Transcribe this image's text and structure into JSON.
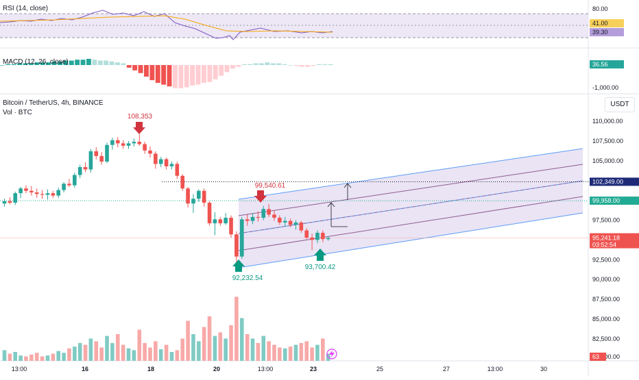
{
  "panes": {
    "rsi": {
      "label": "RSI (14, close)",
      "axis_labels": [
        "80.00",
        "41.00",
        "39.30"
      ]
    },
    "macd": {
      "label": "MACD (12, 26, close)",
      "axis_labels": [
        "36.56",
        "-1,000.00"
      ]
    },
    "price": {
      "title": "Bitcoin / TetherUS, 4h, BINANCE",
      "volume_label": "Vol · BTC",
      "currency_button": "USDT",
      "y_axis_labels": [
        "110,000.00",
        "107,500.00",
        "105,000.00",
        "102,349.00",
        "99,958.00",
        "97,500.00",
        "95,241.18",
        "03:52:54",
        "92,500.00",
        "90,000.00",
        "87,500.00",
        "85,000.00",
        "82,500.00",
        "80,000.00",
        "63"
      ]
    }
  },
  "x_axis_labels": [
    "13:00",
    "16",
    "18",
    "20",
    "13:00",
    "23",
    "25",
    "27",
    "13:00",
    "30"
  ],
  "annotations": {
    "high": "108,353",
    "resistance": "99,540.61",
    "low_1": "92,232.54",
    "low_2": "93,700.42"
  },
  "colors": {
    "up": "#26a69a",
    "down": "#ef5350",
    "rsi_line": "#7e57c2",
    "rsi_ma": "#f7a600",
    "channel_fill": "#b39ddb",
    "channel_edge": "#5b9cf6",
    "annotation_red": "#d1343f",
    "annotation_green": "#089981",
    "level_dark": "#131722",
    "level_green": "#22ab94"
  },
  "chart_data": {
    "type": "candlestick",
    "title": "Bitcoin / TetherUS, 4h, BINANCE",
    "ylim": [
      80000,
      112000
    ],
    "candles": [
      {
        "o": 99600,
        "h": 100200,
        "l": 99200,
        "c": 99900
      },
      {
        "o": 99900,
        "h": 100400,
        "l": 99500,
        "c": 99700
      },
      {
        "o": 99700,
        "h": 101100,
        "l": 99400,
        "c": 100900
      },
      {
        "o": 100900,
        "h": 101700,
        "l": 100300,
        "c": 101500
      },
      {
        "o": 101500,
        "h": 101900,
        "l": 100900,
        "c": 101200
      },
      {
        "o": 101200,
        "h": 101800,
        "l": 100600,
        "c": 101000
      },
      {
        "o": 101000,
        "h": 101500,
        "l": 100300,
        "c": 100800
      },
      {
        "o": 100800,
        "h": 101300,
        "l": 100200,
        "c": 100700
      },
      {
        "o": 100700,
        "h": 101400,
        "l": 100100,
        "c": 100900
      },
      {
        "o": 100900,
        "h": 101200,
        "l": 100300,
        "c": 100600
      },
      {
        "o": 100600,
        "h": 101600,
        "l": 100300,
        "c": 101300
      },
      {
        "o": 101300,
        "h": 102300,
        "l": 101000,
        "c": 102100
      },
      {
        "o": 102100,
        "h": 102700,
        "l": 101700,
        "c": 101900
      },
      {
        "o": 101900,
        "h": 103500,
        "l": 101600,
        "c": 103200
      },
      {
        "o": 103200,
        "h": 104500,
        "l": 102800,
        "c": 104200
      },
      {
        "o": 104200,
        "h": 104800,
        "l": 103600,
        "c": 103900
      },
      {
        "o": 103900,
        "h": 106500,
        "l": 103500,
        "c": 106200
      },
      {
        "o": 106200,
        "h": 106700,
        "l": 105200,
        "c": 105600
      },
      {
        "o": 105600,
        "h": 106100,
        "l": 104500,
        "c": 104900
      },
      {
        "o": 104900,
        "h": 107300,
        "l": 104700,
        "c": 107000
      },
      {
        "o": 107000,
        "h": 107900,
        "l": 106400,
        "c": 107600
      },
      {
        "o": 107600,
        "h": 108000,
        "l": 106700,
        "c": 107200
      },
      {
        "o": 107200,
        "h": 107600,
        "l": 106500,
        "c": 106900
      },
      {
        "o": 106900,
        "h": 107500,
        "l": 106500,
        "c": 107200
      },
      {
        "o": 107200,
        "h": 107800,
        "l": 106800,
        "c": 107400
      },
      {
        "o": 107400,
        "h": 108353,
        "l": 106900,
        "c": 107100
      },
      {
        "o": 107100,
        "h": 107400,
        "l": 105900,
        "c": 106300
      },
      {
        "o": 106300,
        "h": 106800,
        "l": 105400,
        "c": 105900
      },
      {
        "o": 105900,
        "h": 106200,
        "l": 104000,
        "c": 104600
      },
      {
        "o": 104600,
        "h": 105500,
        "l": 104200,
        "c": 105200
      },
      {
        "o": 105200,
        "h": 105400,
        "l": 103900,
        "c": 104300
      },
      {
        "o": 104300,
        "h": 104900,
        "l": 103900,
        "c": 104600
      },
      {
        "o": 104600,
        "h": 104900,
        "l": 102700,
        "c": 103100
      },
      {
        "o": 103100,
        "h": 103300,
        "l": 101200,
        "c": 101500
      },
      {
        "o": 101500,
        "h": 101700,
        "l": 99100,
        "c": 99600
      },
      {
        "o": 99600,
        "h": 100800,
        "l": 98400,
        "c": 100200
      },
      {
        "o": 100200,
        "h": 101400,
        "l": 99800,
        "c": 101200
      },
      {
        "o": 101200,
        "h": 101500,
        "l": 99200,
        "c": 99700
      },
      {
        "o": 99700,
        "h": 99900,
        "l": 96800,
        "c": 97100
      },
      {
        "o": 97100,
        "h": 98500,
        "l": 95600,
        "c": 97600
      },
      {
        "o": 97600,
        "h": 97900,
        "l": 96800,
        "c": 97100
      },
      {
        "o": 97100,
        "h": 98400,
        "l": 96900,
        "c": 97800
      },
      {
        "o": 97800,
        "h": 98100,
        "l": 95300,
        "c": 95700
      },
      {
        "o": 95700,
        "h": 96100,
        "l": 92232,
        "c": 92900
      },
      {
        "o": 92900,
        "h": 97900,
        "l": 92600,
        "c": 97600
      },
      {
        "o": 97600,
        "h": 98200,
        "l": 96800,
        "c": 97400
      },
      {
        "o": 97400,
        "h": 98400,
        "l": 97000,
        "c": 97900
      },
      {
        "o": 97900,
        "h": 98600,
        "l": 97300,
        "c": 97800
      },
      {
        "o": 97800,
        "h": 99300,
        "l": 97500,
        "c": 98900
      },
      {
        "o": 98900,
        "h": 99540,
        "l": 97900,
        "c": 98200
      },
      {
        "o": 98200,
        "h": 98700,
        "l": 97400,
        "c": 97800
      },
      {
        "o": 97800,
        "h": 98100,
        "l": 96900,
        "c": 97200
      },
      {
        "o": 97200,
        "h": 97900,
        "l": 96700,
        "c": 97400
      },
      {
        "o": 97400,
        "h": 97700,
        "l": 96600,
        "c": 96900
      },
      {
        "o": 96900,
        "h": 97500,
        "l": 96300,
        "c": 97200
      },
      {
        "o": 97200,
        "h": 97400,
        "l": 95900,
        "c": 96200
      },
      {
        "o": 96200,
        "h": 96500,
        "l": 95100,
        "c": 95300
      },
      {
        "o": 95300,
        "h": 95800,
        "l": 93700,
        "c": 95000
      },
      {
        "o": 95000,
        "h": 96200,
        "l": 94600,
        "c": 95900
      },
      {
        "o": 95900,
        "h": 96200,
        "l": 94700,
        "c": 95100
      },
      {
        "o": 95100,
        "h": 95400,
        "l": 94900,
        "c": 95241
      }
    ],
    "volume": [
      12,
      8,
      10,
      6,
      5,
      7,
      9,
      5,
      6,
      8,
      11,
      9,
      14,
      16,
      20,
      18,
      25,
      22,
      15,
      28,
      20,
      30,
      18,
      14,
      12,
      35,
      20,
      15,
      22,
      13,
      18,
      10,
      12,
      25,
      45,
      30,
      22,
      38,
      50,
      28,
      32,
      25,
      40,
      72,
      48,
      30,
      25,
      20,
      28,
      22,
      18,
      15,
      14,
      16,
      18,
      20,
      22,
      15,
      18,
      25,
      8
    ],
    "levels": {
      "swing_high": 108353,
      "resistance": 99540.61,
      "low_1": 92232.54,
      "low_2": 93700.42,
      "dotted_high": 102349.0,
      "dotted_green": 99958.0,
      "last_price": 95241.18
    }
  }
}
